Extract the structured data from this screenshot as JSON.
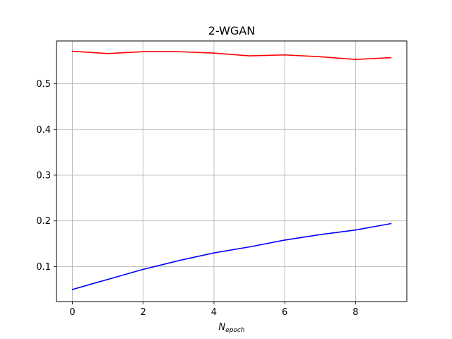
{
  "chart_data": {
    "type": "line",
    "title": "2-WGAN",
    "xlabel": "N",
    "xlabel_subscript": "epoch",
    "ylabel": "",
    "xlim": [
      -0.45,
      9.45
    ],
    "ylim": [
      0.0235,
      0.5935
    ],
    "xticks": [
      0,
      2,
      4,
      6,
      8
    ],
    "yticks": [
      0.1,
      0.2,
      0.3,
      0.4,
      0.5
    ],
    "grid": true,
    "x": [
      0,
      1,
      2,
      3,
      4,
      5,
      6,
      7,
      8,
      9
    ],
    "series": [
      {
        "color": "#ff0000",
        "values": [
          0.571,
          0.566,
          0.57,
          0.57,
          0.567,
          0.561,
          0.563,
          0.559,
          0.553,
          0.557
        ]
      },
      {
        "color": "#0000ff",
        "values": [
          0.05,
          0.072,
          0.094,
          0.113,
          0.13,
          0.143,
          0.158,
          0.17,
          0.18,
          0.194
        ]
      }
    ]
  }
}
